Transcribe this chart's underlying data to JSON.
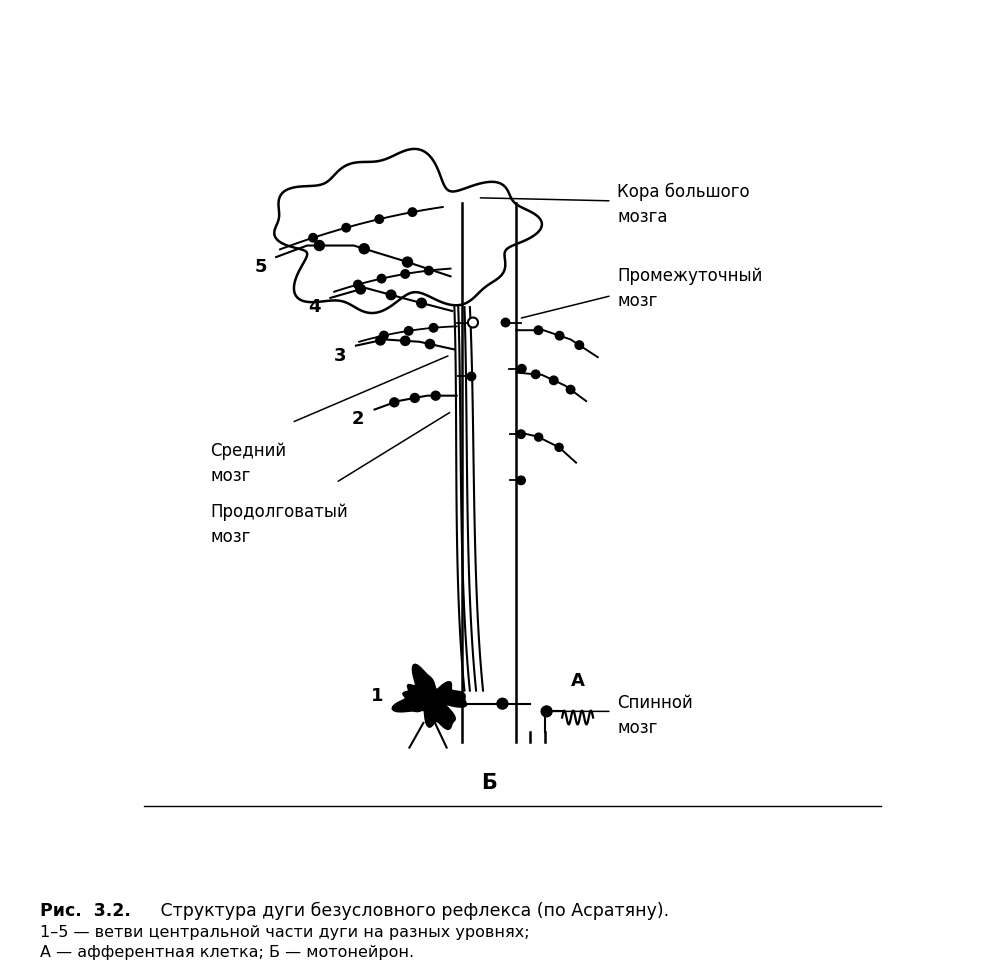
{
  "label_kora": "Кора большого\nмозга",
  "label_promezhutochny": "Промежуточный\nмозг",
  "label_sredny": "Средний\nмозг",
  "label_prodolgovaty": "Продолговатый\nмозг",
  "label_spinnoj": "Спинной\nмозг",
  "label_B": "Б",
  "label_A": "А",
  "label_1": "1",
  "label_2": "2",
  "label_3": "3",
  "label_4": "4",
  "label_5": "5",
  "caption_bold": "Рис.  3.2.",
  "caption_normal": "  Структура дуги безусловного рефлекса (по Асратяну).",
  "caption_line2": "(по Асратяну).",
  "caption_line3": "1–5 — ветви центральной части дуги на разных уровнях;",
  "caption_line4": "А — афферентная клетка; Б — мотонейрон.",
  "bg_color": "#ffffff",
  "line_color": "#000000"
}
